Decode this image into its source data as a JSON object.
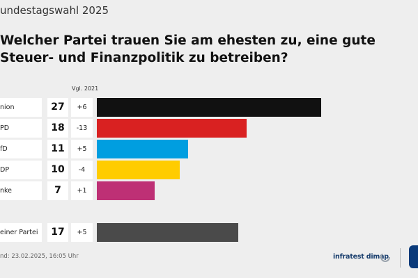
{
  "header": {
    "supertitle": "undestagswahl 2025",
    "title": "Welcher Partei trauen Sie am ehesten zu, eine gute Steuer- und Finanzpolitik zu betreiben?"
  },
  "chart_data": {
    "type": "bar",
    "orientation": "horizontal",
    "comparison_label": "Vgl. 2021",
    "rows": [
      {
        "label": "nion",
        "value": 27,
        "change": "+6",
        "color": "#111111"
      },
      {
        "label": "PD",
        "value": 18,
        "change": "-13",
        "color": "#d92121"
      },
      {
        "label": "fD",
        "value": 11,
        "change": "+5",
        "color": "#009ee0"
      },
      {
        "label": "DP",
        "value": 10,
        "change": "-4",
        "color": "#ffcc00"
      },
      {
        "label": "nke",
        "value": 7,
        "change": "+1",
        "color": "#be3075"
      },
      {
        "label": "einer Partei",
        "value": 17,
        "change": "+5",
        "color": "#4a4a4a"
      }
    ]
  },
  "footer": {
    "stand": "nd:  23.02.2025, 16:05 Uhr",
    "brand": "infratest dimap"
  }
}
